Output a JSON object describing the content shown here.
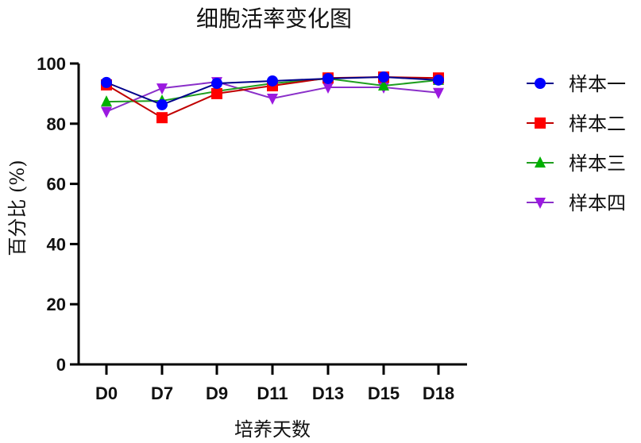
{
  "chart_data": {
    "type": "line",
    "title": "细胞活率变化图",
    "xlabel": "培养天数",
    "ylabel": "百分比 (%)",
    "ylim": [
      0,
      100
    ],
    "yticks": [
      0,
      20,
      40,
      60,
      80,
      100
    ],
    "categories": [
      "D0",
      "D7",
      "D9",
      "D11",
      "D13",
      "D15",
      "D18"
    ],
    "grid": false,
    "legend_position": "right",
    "series": [
      {
        "name": "样本一",
        "color": "#0000ff",
        "line_color": "#00008b",
        "marker": "circle",
        "values": [
          93.7,
          86.3,
          93.4,
          94.2,
          95.0,
          95.5,
          94.5
        ]
      },
      {
        "name": "样本二",
        "color": "#ff0000",
        "line_color": "#c00000",
        "marker": "square",
        "values": [
          92.9,
          82.0,
          90.0,
          92.6,
          95.2,
          95.5,
          95.2
        ]
      },
      {
        "name": "样本三",
        "color": "#00b000",
        "line_color": "#1f9e1f",
        "marker": "triangle-up",
        "values": [
          87.3,
          87.6,
          90.8,
          93.4,
          95.0,
          92.6,
          94.5
        ]
      },
      {
        "name": "样本四",
        "color": "#9b19e0",
        "line_color": "#8a2fc9",
        "marker": "triangle-down",
        "values": [
          84.0,
          91.8,
          93.9,
          88.4,
          92.1,
          92.1,
          90.3
        ]
      }
    ]
  }
}
